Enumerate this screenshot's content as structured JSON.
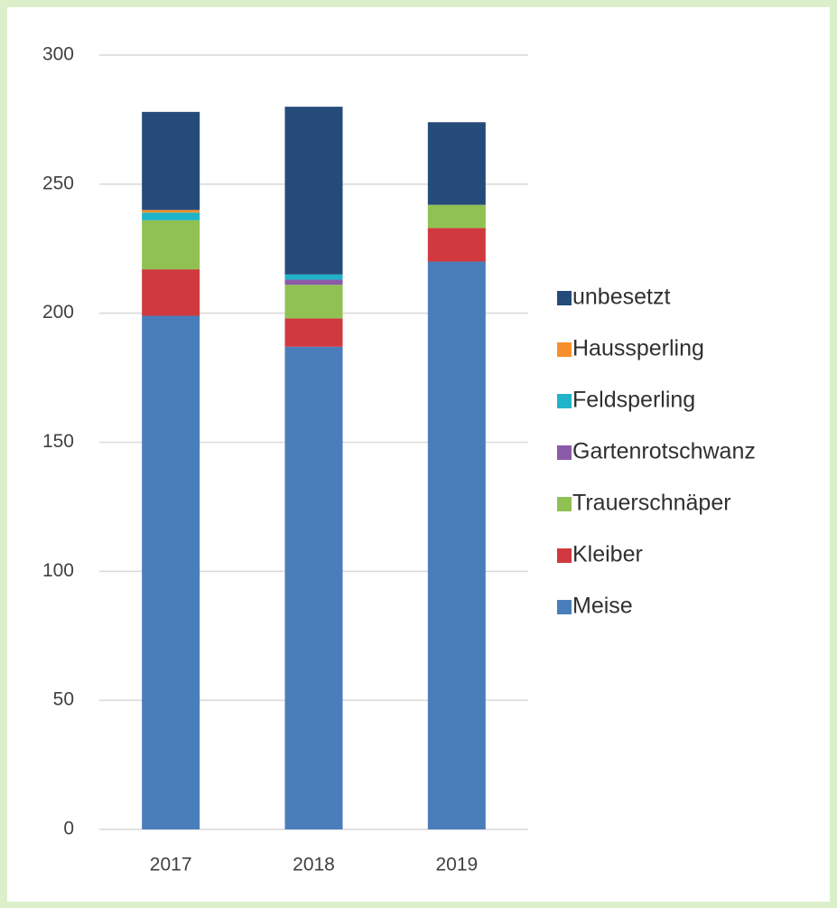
{
  "chart_data": {
    "type": "stacked_bar",
    "categories": [
      "2017",
      "2018",
      "2019"
    ],
    "series": [
      {
        "name": "Meise",
        "color": "#4a7ebb",
        "values": [
          199,
          187,
          220
        ]
      },
      {
        "name": "Kleiber",
        "color": "#d0393f",
        "values": [
          18,
          11,
          13
        ]
      },
      {
        "name": "Trauerschnäper",
        "color": "#8fc153",
        "values": [
          19,
          13,
          9
        ]
      },
      {
        "name": "Gartenrotschwanz",
        "color": "#8b5aa8",
        "values": [
          0,
          2,
          0
        ]
      },
      {
        "name": "Feldsperling",
        "color": "#1fb4c9",
        "values": [
          3,
          2,
          0
        ]
      },
      {
        "name": "Haussperling",
        "color": "#f7902a",
        "values": [
          1,
          0,
          0
        ]
      },
      {
        "name": "unbesetzt",
        "color": "#254b7a",
        "values": [
          38,
          65,
          32
        ]
      }
    ],
    "ylim": [
      0,
      300
    ],
    "yticks": [
      0,
      50,
      100,
      150,
      200,
      250,
      300
    ],
    "grid": true,
    "legend": "right"
  }
}
